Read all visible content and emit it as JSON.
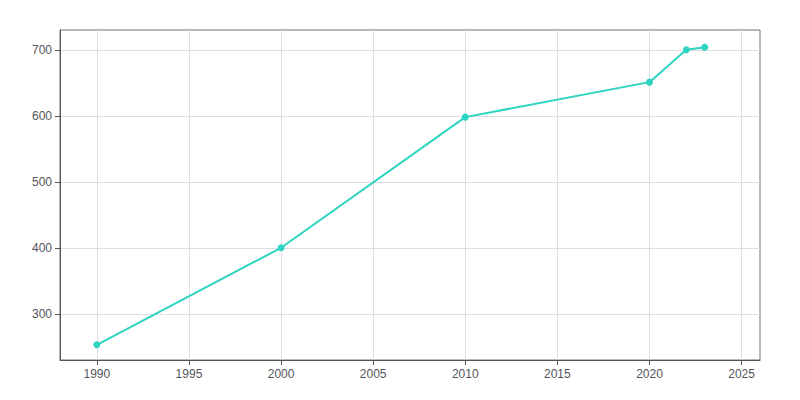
{
  "chart_data": {
    "type": "line",
    "x": [
      1990,
      2000,
      2010,
      2020,
      2022,
      2023
    ],
    "values": [
      253,
      400,
      598,
      651,
      700,
      704
    ],
    "color": "#2dd4bf",
    "marker": "circle",
    "xlim": [
      1988,
      2026
    ],
    "ylim": [
      230,
      730
    ],
    "xticks": [
      1990,
      1995,
      2000,
      2005,
      2010,
      2015,
      2020,
      2025
    ],
    "yticks": [
      300,
      400,
      500,
      600,
      700
    ],
    "grid": true
  }
}
